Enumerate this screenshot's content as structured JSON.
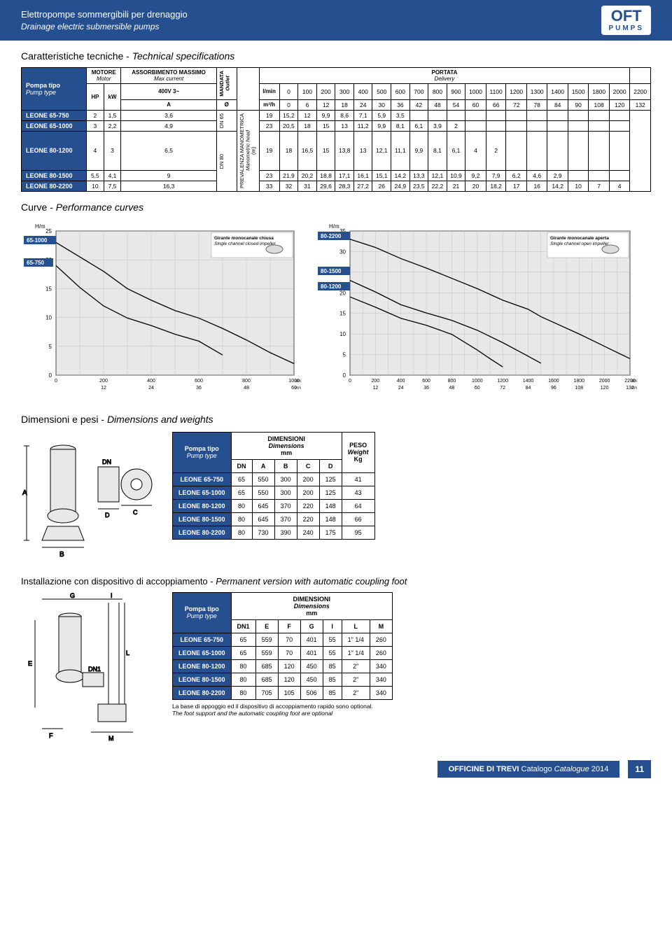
{
  "header": {
    "title_it": "Elettropompe sommergibili per drenaggio",
    "title_en": "Drainage electric submersible pumps",
    "logo_main": "OFT",
    "logo_sub": "PUMPS"
  },
  "spec_section": {
    "title_it": "Caratteristiche tecniche - ",
    "title_en": "Technical specifications",
    "headers": {
      "pump_type_it": "Pompa tipo",
      "pump_type_en": "Pump type",
      "motor_it": "MOTORE",
      "motor_en": "Motor",
      "hp": "HP",
      "kw": "kW",
      "max_current_it": "ASSORBIMENTO MASSIMO",
      "max_current_en": "Max current",
      "voltage": "400V 3~",
      "amps": "A",
      "outlet_it": "MANDATA",
      "outlet_en": "Outlet",
      "diameter": "Ø",
      "head_it": "PREVALENZA MANOMETRICA",
      "head_en": "Manometric head",
      "head_unit": "(m)",
      "delivery_it": "PORTATA",
      "delivery_en": "Delivery",
      "lmin": "l/min",
      "m3h": "m³/h"
    },
    "flow_lmin": [
      "0",
      "100",
      "200",
      "300",
      "400",
      "500",
      "600",
      "700",
      "800",
      "900",
      "1000",
      "1100",
      "1200",
      "1300",
      "1400",
      "1500",
      "1800",
      "2000",
      "2200"
    ],
    "flow_m3h": [
      "0",
      "6",
      "12",
      "18",
      "24",
      "30",
      "36",
      "42",
      "48",
      "54",
      "60",
      "66",
      "72",
      "78",
      "84",
      "90",
      "108",
      "120",
      "132"
    ],
    "dn_labels": [
      "DN 65",
      "DN 80"
    ],
    "rows": [
      {
        "name": "LEONE 65-750",
        "hp": "2",
        "kw": "1,5",
        "a": "3,6",
        "dn_group": 0,
        "head": [
          "19",
          "15,2",
          "12",
          "9,9",
          "8,6",
          "7,1",
          "5,9",
          "3,5",
          "",
          "",
          "",
          "",
          "",
          "",
          "",
          "",
          "",
          "",
          ""
        ]
      },
      {
        "name": "LEONE 65-1000",
        "hp": "3",
        "kw": "2,2",
        "a": "4,9",
        "dn_group": 0,
        "head": [
          "23",
          "20,5",
          "18",
          "15",
          "13",
          "11,2",
          "9,9",
          "8,1",
          "6,1",
          "3,9",
          "2",
          "",
          "",
          "",
          "",
          "",
          "",
          "",
          ""
        ]
      },
      {
        "name": "LEONE 80-1200",
        "hp": "4",
        "kw": "3",
        "a": "6,5",
        "dn_group": 1,
        "head": [
          "19",
          "18",
          "16,5",
          "15",
          "13,8",
          "13",
          "12,1",
          "11,1",
          "9,9",
          "8,1",
          "6,1",
          "4",
          "2",
          "",
          "",
          "",
          "",
          "",
          ""
        ]
      },
      {
        "name": "LEONE 80-1500",
        "hp": "5,5",
        "kw": "4,1",
        "a": "9",
        "dn_group": 1,
        "head": [
          "23",
          "21,9",
          "20,2",
          "18,8",
          "17,1",
          "16,1",
          "15,1",
          "14,2",
          "13,3",
          "12,1",
          "10,9",
          "9,2",
          "7,9",
          "6,2",
          "4,6",
          "2,9",
          "",
          "",
          ""
        ]
      },
      {
        "name": "LEONE 80-2200",
        "hp": "10",
        "kw": "7,5",
        "a": "16,3",
        "dn_group": 1,
        "head": [
          "33",
          "32",
          "31",
          "29,6",
          "28,3",
          "27,2",
          "26",
          "24,9",
          "23,5",
          "22,2",
          "21",
          "20",
          "18,2",
          "17",
          "16",
          "14,2",
          "10",
          "7",
          "4"
        ]
      }
    ]
  },
  "curves_section": {
    "title_it": "Curve - ",
    "title_en": "Performance curves",
    "chart1": {
      "impeller_it": "Girante monocanale chiusa",
      "impeller_en": "Single channel closed impeller",
      "ylabel": "H/m",
      "y_ticks": [
        25,
        20,
        15,
        10,
        5,
        0
      ],
      "x_ticks_lmin": [
        0,
        200,
        400,
        600,
        800,
        1000
      ],
      "x_ticks_m3h": [
        12,
        24,
        36,
        48,
        60
      ],
      "x_unit1": "l/min.",
      "x_unit2": "m³/h",
      "series_labels": [
        "65-1000",
        "65-750"
      ],
      "bg": "#e8e8e8",
      "grid": "#bbbbbb",
      "curve_color": "#000000",
      "label_bg": "#264f8f"
    },
    "chart2": {
      "impeller_it": "Girante monocanale aperta",
      "impeller_en": "Single channel open impeller",
      "ylabel": "H/m",
      "y_ticks": [
        35,
        30,
        25,
        20,
        15,
        10,
        5,
        0
      ],
      "x_ticks_lmin": [
        0,
        200,
        400,
        600,
        800,
        1000,
        1200,
        1400,
        1600,
        1800,
        2000,
        2200
      ],
      "x_ticks_m3h": [
        12,
        24,
        36,
        48,
        60,
        72,
        84,
        96,
        108,
        120,
        132
      ],
      "x_unit1": "l/min",
      "x_unit2": "m³/h",
      "series_labels": [
        "80-2200",
        "80-1500",
        "80-1200"
      ],
      "bg": "#e8e8e8",
      "grid": "#bbbbbb",
      "curve_color": "#000000",
      "label_bg": "#264f8f"
    }
  },
  "dim_section": {
    "title_it": "Dimensioni e pesi - ",
    "title_en": "Dimensions and weights",
    "headers": {
      "pump_type_it": "Pompa tipo",
      "pump_type_en": "Pump type",
      "dim_it": "DIMENSIONI",
      "dim_en": "Dimensions",
      "dim_unit": "mm",
      "weight_it": "PESO",
      "weight_en": "Weight",
      "weight_unit": "Kg",
      "cols": [
        "DN",
        "A",
        "B",
        "C",
        "D"
      ]
    },
    "rows": [
      {
        "name": "LEONE 65-750",
        "vals": [
          "65",
          "550",
          "300",
          "200",
          "125"
        ],
        "w": "41"
      },
      {
        "name": "LEONE 65-1000",
        "vals": [
          "65",
          "550",
          "300",
          "200",
          "125"
        ],
        "w": "43"
      },
      {
        "name": "LEONE 80-1200",
        "vals": [
          "80",
          "645",
          "370",
          "220",
          "148"
        ],
        "w": "64"
      },
      {
        "name": "LEONE 80-1500",
        "vals": [
          "80",
          "645",
          "370",
          "220",
          "148"
        ],
        "w": "66"
      },
      {
        "name": "LEONE 80-2200",
        "vals": [
          "80",
          "730",
          "390",
          "240",
          "175"
        ],
        "w": "95"
      }
    ]
  },
  "install_section": {
    "title_it": "Installazione con dispositivo di accoppiamento - ",
    "title_en": "Permanent version with automatic coupling foot",
    "headers": {
      "pump_type_it": "Pompa tipo",
      "pump_type_en": "Pump type",
      "dim_it": "DIMENSIONI",
      "dim_en": "Dimensions",
      "dim_unit": "mm",
      "cols": [
        "DN1",
        "E",
        "F",
        "G",
        "I",
        "L",
        "M"
      ]
    },
    "rows": [
      {
        "name": "LEONE 65-750",
        "vals": [
          "65",
          "559",
          "70",
          "401",
          "55",
          "1\" 1/4",
          "260"
        ]
      },
      {
        "name": "LEONE 65-1000",
        "vals": [
          "65",
          "559",
          "70",
          "401",
          "55",
          "1\" 1/4",
          "260"
        ]
      },
      {
        "name": "LEONE 80-1200",
        "vals": [
          "80",
          "685",
          "120",
          "450",
          "85",
          "2\"",
          "340"
        ]
      },
      {
        "name": "LEONE 80-1500",
        "vals": [
          "80",
          "685",
          "120",
          "450",
          "85",
          "2\"",
          "340"
        ]
      },
      {
        "name": "LEONE 80-2200",
        "vals": [
          "80",
          "705",
          "105",
          "506",
          "85",
          "2\"",
          "340"
        ]
      }
    ],
    "footnote_it": "La base di appoggio ed il dispositivo di accoppiamento rapido sono optional.",
    "footnote_en": "The foot support and the automatic coupling foot are optional"
  },
  "footer": {
    "text_main": "OFFICINE DI TREVI",
    "text_cat_it": " Catalogo ",
    "text_cat_en": "Catalogue",
    "year": " 2014",
    "page": "11"
  },
  "colors": {
    "brand_blue": "#264f8f",
    "chart_bg": "#e8e8e8",
    "grid": "#bbbbbb"
  }
}
